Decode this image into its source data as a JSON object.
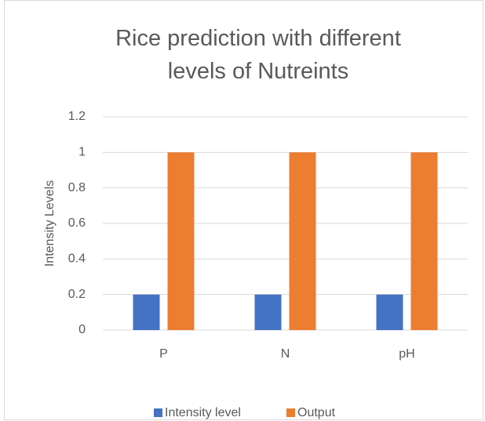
{
  "chart_data": {
    "type": "bar",
    "title": "Rice prediction with different levels of Nutreints",
    "ylabel": "Intensity Levels",
    "categories": [
      "P",
      "N",
      "pH"
    ],
    "series": [
      {
        "name": "Intensity level",
        "color": "#4472c4",
        "values": [
          0.2,
          0.2,
          0.2
        ]
      },
      {
        "name": "Output",
        "color": "#ed7d31",
        "values": [
          1,
          1,
          1
        ]
      }
    ],
    "ylim": [
      0,
      1.2
    ],
    "yticks": [
      0,
      0.2,
      0.4,
      0.6,
      0.8,
      1,
      1.2
    ],
    "grid": true,
    "legend": "bottom"
  }
}
